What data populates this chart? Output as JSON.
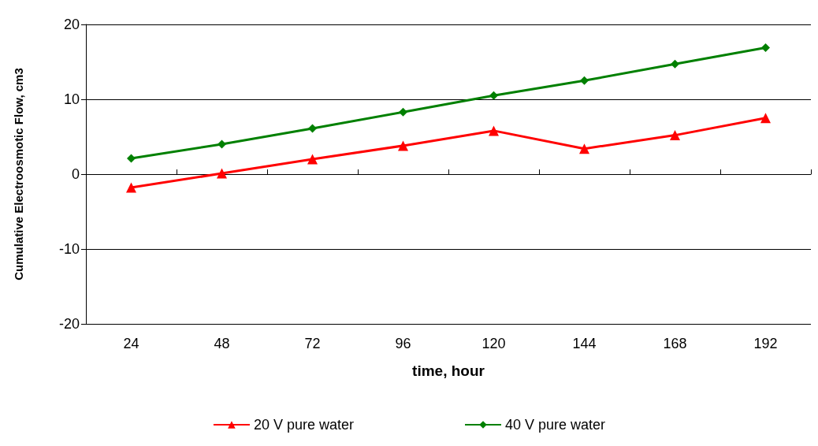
{
  "chart_data": {
    "type": "line",
    "xlabel": "time, hour",
    "ylabel": "Cumulative Electroosmotic Flow, cm3",
    "categories": [
      "24",
      "48",
      "72",
      "96",
      "120",
      "144",
      "168",
      "192"
    ],
    "series": [
      {
        "name": "20 V pure water",
        "color": "#ff0000",
        "marker": "triangle",
        "values": [
          -1.8,
          0.1,
          2.0,
          3.8,
          5.8,
          3.4,
          5.2,
          7.5
        ]
      },
      {
        "name": "40 V pure water",
        "color": "#008000",
        "marker": "diamond",
        "values": [
          2.1,
          4.0,
          6.1,
          8.3,
          10.5,
          12.5,
          14.7,
          16.9
        ]
      }
    ],
    "ylim": [
      -20,
      20
    ],
    "yticks": [
      -20,
      -10,
      0,
      10,
      20
    ],
    "grid": "y",
    "legend": "bottom",
    "line_style": "solid"
  }
}
